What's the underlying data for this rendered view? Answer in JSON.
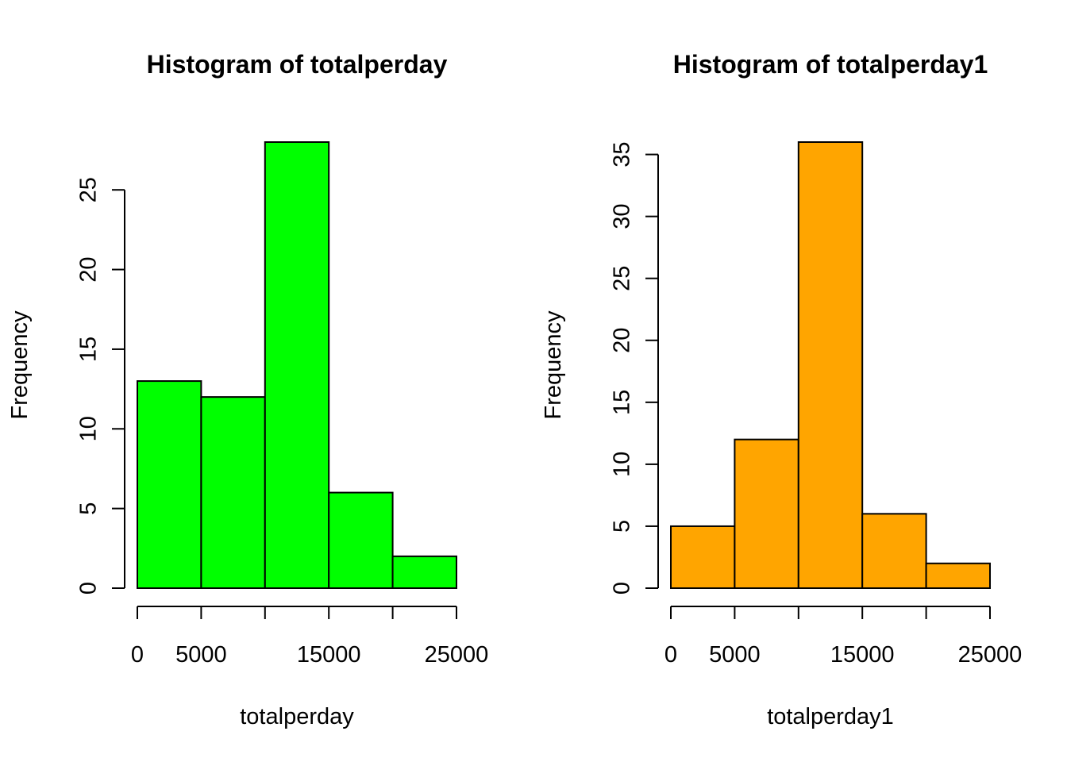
{
  "chart_data": [
    {
      "type": "bar",
      "title": "Histogram of totalperday",
      "xlabel": "totalperday",
      "ylabel": "Frequency",
      "bins": [
        [
          0,
          5000
        ],
        [
          5000,
          10000
        ],
        [
          10000,
          15000
        ],
        [
          15000,
          20000
        ],
        [
          20000,
          25000
        ]
      ],
      "values": [
        13,
        12,
        28,
        6,
        2
      ],
      "color": "#00ff00",
      "xlim": [
        0,
        25000
      ],
      "ylim": [
        0,
        28
      ],
      "x_ticks": [
        0,
        5000,
        10000,
        15000,
        20000,
        25000
      ],
      "x_tick_labels": [
        "0",
        "5000",
        "",
        "15000",
        "",
        "25000"
      ],
      "y_ticks": [
        0,
        5,
        10,
        15,
        20,
        25
      ],
      "y_tick_labels": [
        "0",
        "5",
        "10",
        "15",
        "20",
        "25"
      ],
      "grid": false,
      "legend": "none"
    },
    {
      "type": "bar",
      "title": "Histogram of totalperday1",
      "xlabel": "totalperday1",
      "ylabel": "Frequency",
      "bins": [
        [
          0,
          5000
        ],
        [
          5000,
          10000
        ],
        [
          10000,
          15000
        ],
        [
          15000,
          20000
        ],
        [
          20000,
          25000
        ]
      ],
      "values": [
        5,
        12,
        36,
        6,
        2
      ],
      "color": "#ffa500",
      "xlim": [
        0,
        25000
      ],
      "ylim": [
        0,
        36
      ],
      "x_ticks": [
        0,
        5000,
        10000,
        15000,
        20000,
        25000
      ],
      "x_tick_labels": [
        "0",
        "5000",
        "",
        "15000",
        "",
        "25000"
      ],
      "y_ticks": [
        0,
        5,
        10,
        15,
        20,
        25,
        30,
        35
      ],
      "y_tick_labels": [
        "0",
        "5",
        "10",
        "15",
        "20",
        "25",
        "30",
        "35"
      ],
      "grid": false,
      "legend": "none"
    }
  ]
}
